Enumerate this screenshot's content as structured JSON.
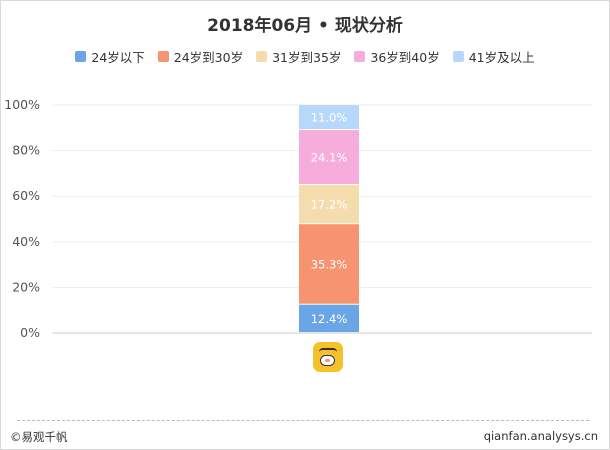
{
  "chart_data": {
    "type": "bar",
    "stacked": true,
    "normalized": true,
    "title": "2018年06月 • 现状分析",
    "categories": [
      ""
    ],
    "ylim": [
      0,
      100
    ],
    "y_ticks": [
      "0%",
      "20%",
      "40%",
      "60%",
      "80%",
      "100%"
    ],
    "grid": true,
    "legend_position": "top",
    "series": [
      {
        "name": "24岁以下",
        "color": "#6aa6e6",
        "values": [
          12.4
        ],
        "label": "12.4%"
      },
      {
        "name": "24岁到30岁",
        "color": "#f69370",
        "values": [
          35.3
        ],
        "label": "35.3%"
      },
      {
        "name": "31岁到35岁",
        "color": "#f4dcac",
        "values": [
          17.2
        ],
        "label": "17.2%"
      },
      {
        "name": "36岁到40岁",
        "color": "#f7addb",
        "values": [
          24.1
        ],
        "label": "24.1%"
      },
      {
        "name": "41岁及以上",
        "color": "#b8d8fb",
        "values": [
          11.0
        ],
        "label": "11.0%"
      }
    ]
  },
  "footer": {
    "brand": "©易观千帆",
    "site": "qianfan.analysys.cn"
  }
}
